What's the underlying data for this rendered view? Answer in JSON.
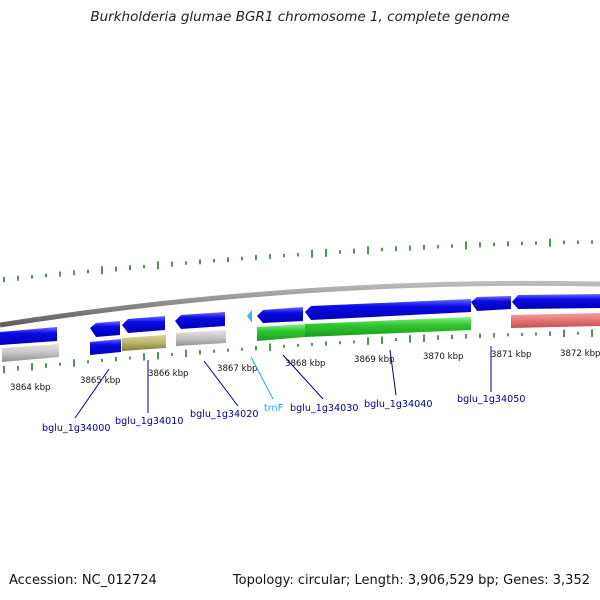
{
  "title": "Burkholderia glumae BGR1 chromosome 1, complete genome",
  "footer": {
    "accession": "Accession: NC_012724",
    "topology": "Topology: circular; Length: 3,906,529 bp; Genes: 3,352"
  },
  "tick_labels": [
    "3864 kbp",
    "3865 kbp",
    "3866 kbp",
    "3867 kbp",
    "3868 kbp",
    "3869 kbp",
    "3870 kbp",
    "3871 kbp",
    "3872 kbp"
  ],
  "gene_labels": [
    "bglu_1g34000",
    "bglu_1g34010",
    "bglu_1g34020",
    "trnF",
    "bglu_1g34030",
    "bglu_1g34040",
    "bglu_1g34050"
  ],
  "colors": {
    "cds_blue": "#0a0ae6",
    "rrna_green": "#2ec82e",
    "gray_feature": "#c2c2c2",
    "olive_feature": "#b7b46a",
    "pink_feature": "#e57373",
    "trna_cyan": "#33bbee",
    "gc_skew_green": "#2a7a2a",
    "backbone": "#8a8a8a"
  }
}
